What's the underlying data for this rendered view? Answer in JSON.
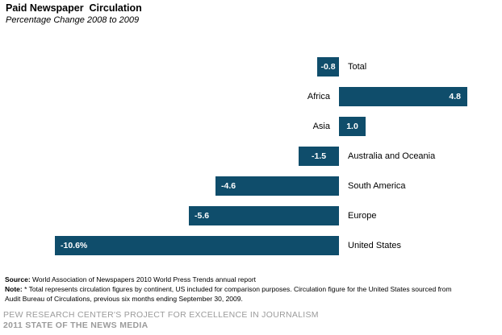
{
  "header": {
    "title": "Paid Newspaper  Circulation",
    "subtitle": "Percentage Change 2008 to 2009"
  },
  "chart_data": {
    "type": "bar",
    "orientation": "horizontal",
    "title": "Paid Newspaper Circulation",
    "subtitle": "Percentage Change 2008 to 2009",
    "xlabel": "",
    "ylabel": "",
    "unit": "percent",
    "xlim": [
      -10.6,
      4.8
    ],
    "grid": false,
    "axis_visible": false,
    "legend": "none",
    "bar_color": "#0F4D6B",
    "value_label_color": "#FFFFFF",
    "categories": [
      "Total",
      "Africa",
      "Asia",
      "Australia and Oceania",
      "South America",
      "Europe",
      "United States"
    ],
    "values": [
      -0.8,
      4.8,
      1.0,
      -1.5,
      -4.6,
      -5.6,
      -10.6
    ],
    "value_labels": [
      "-0.8",
      "4.8",
      "1.0",
      "-1.5",
      "-4.6",
      "-5.6",
      "-10.6%"
    ]
  },
  "footer": {
    "source_label": "Source:",
    "source_text": " World Association of Newspapers 2010 World Press Trends annual report",
    "note_label": "Note:",
    "note_line1": " * Total represents circulation figures by continent, US included for comparison purposes. Circulation figure for the United States sourced from",
    "note_line2": "Audit Bureau of Circulations, previous six months ending September 30, 2009.",
    "branding_line1": "PEW RESEARCH CENTER'S PROJECT FOR EXCELLENCE IN JOURNALISM",
    "branding_line2": "2011 STATE OF THE NEWS MEDIA"
  }
}
